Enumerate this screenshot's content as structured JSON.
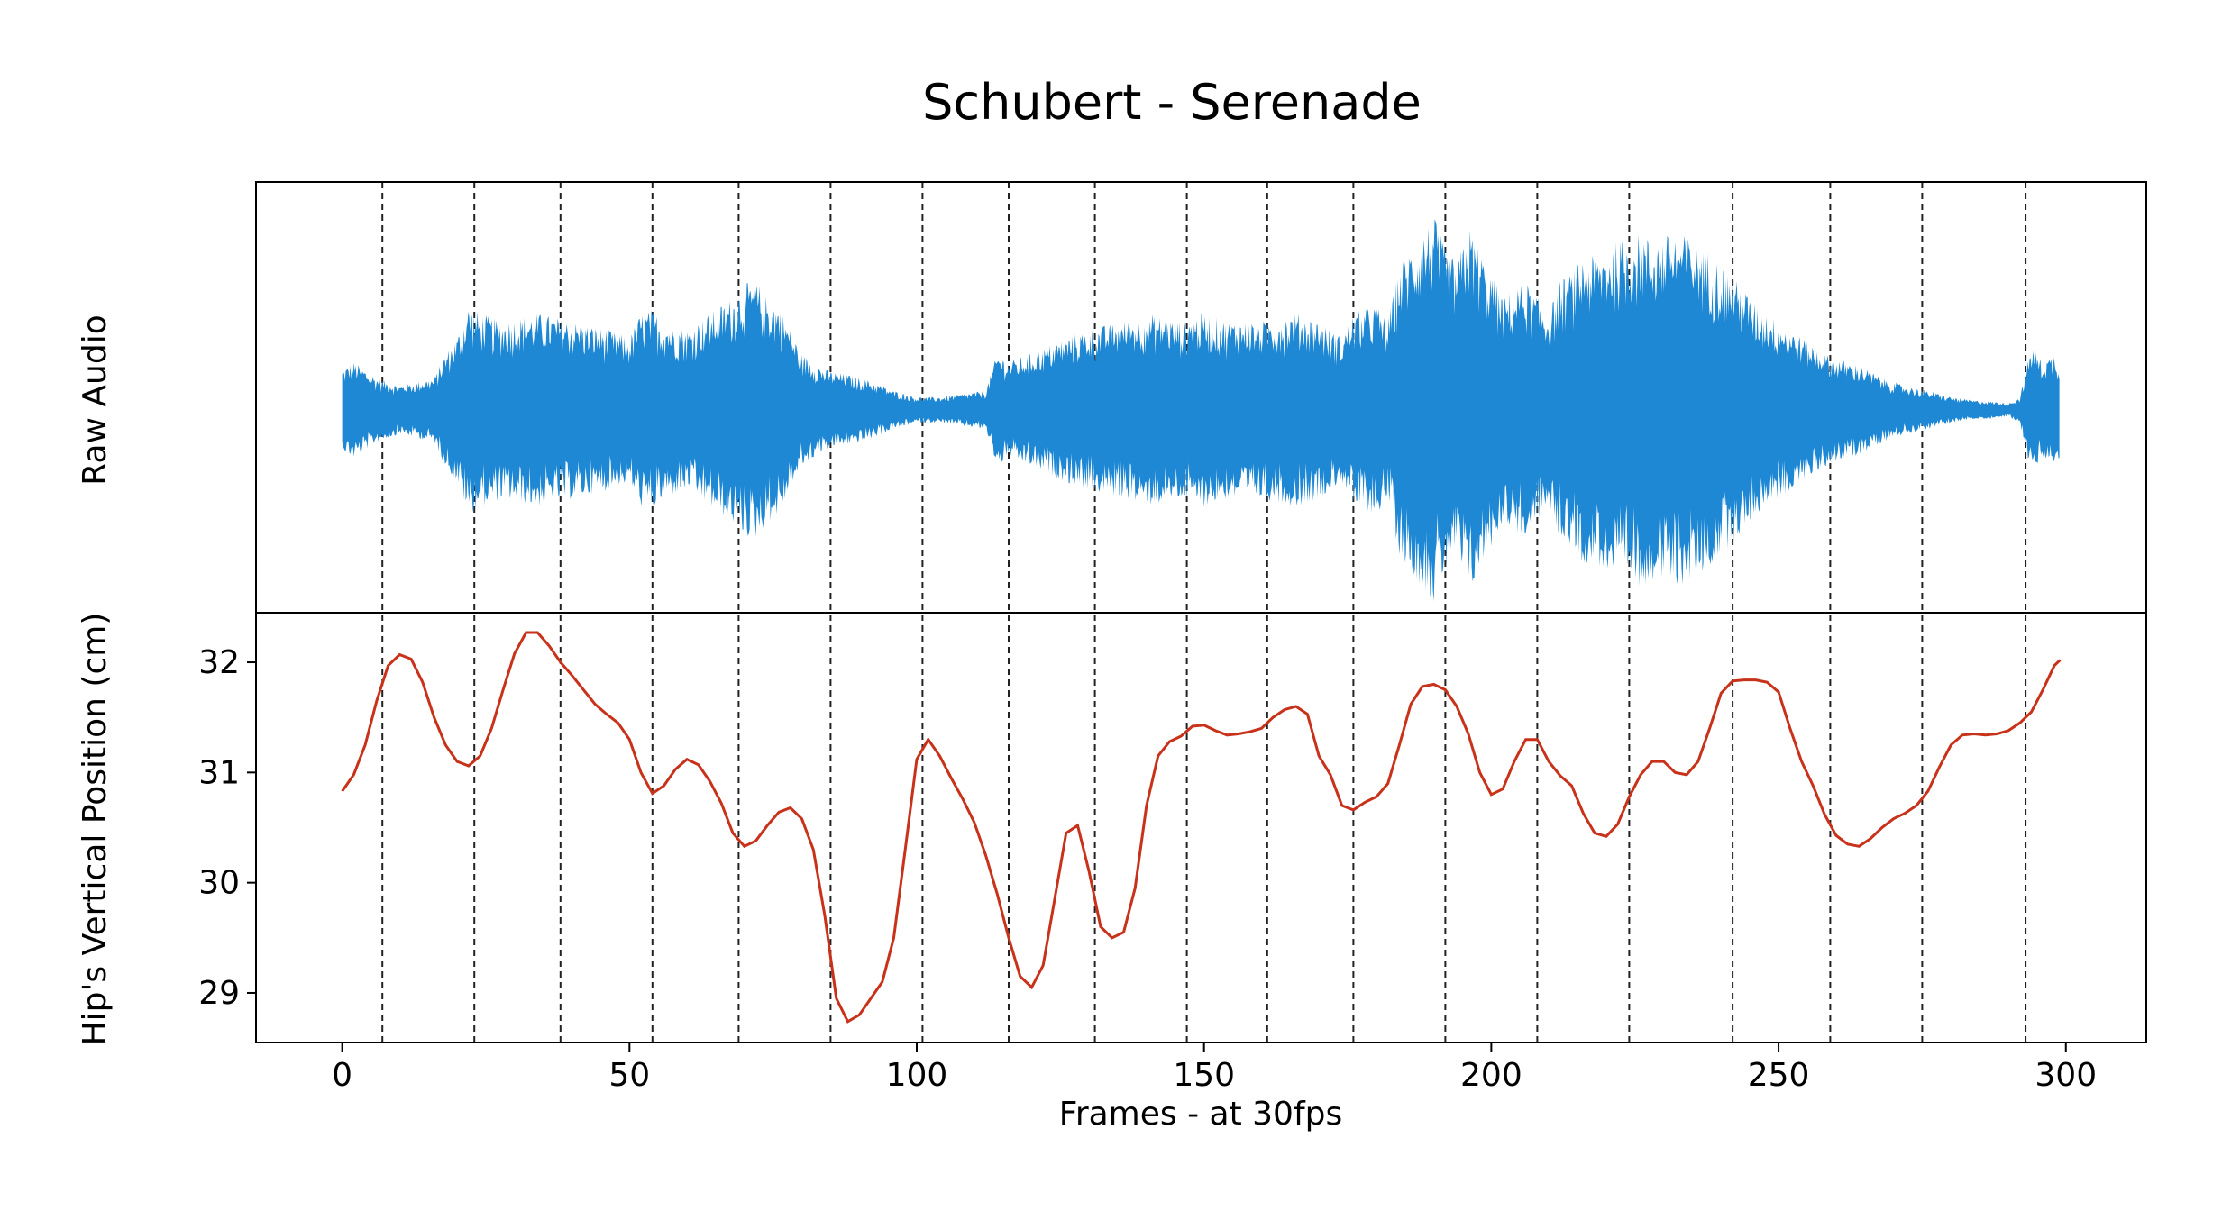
{
  "chart_data": [
    {
      "type": "area",
      "panel": "top",
      "title": "Schubert - Serenade",
      "ylabel": "Raw Audio",
      "y_ticks_shown": false,
      "xlim": [
        -15,
        314
      ],
      "color": "#1f88d4",
      "envelope": {
        "frames": [
          0,
          2,
          4,
          6,
          10,
          16,
          18,
          20,
          22,
          24,
          28,
          34,
          40,
          46,
          50,
          52,
          54,
          56,
          60,
          64,
          68,
          70,
          72,
          74,
          76,
          78,
          80,
          82,
          84,
          88,
          92,
          96,
          100,
          104,
          108,
          112,
          114,
          116,
          120,
          126,
          130,
          136,
          140,
          146,
          150,
          154,
          160,
          166,
          170,
          174,
          176,
          180,
          182,
          184,
          186,
          188,
          190,
          192,
          194,
          196,
          198,
          200,
          202,
          204,
          206,
          208,
          210,
          212,
          214,
          216,
          218,
          220,
          222,
          224,
          226,
          228,
          232,
          236,
          240,
          244,
          246,
          250,
          254,
          258,
          260,
          264,
          268,
          272,
          276,
          280,
          284,
          288,
          290,
          292,
          294,
          296,
          298,
          299
        ],
        "amplitude": [
          0.25,
          0.3,
          0.25,
          0.2,
          0.15,
          0.2,
          0.35,
          0.45,
          0.65,
          0.6,
          0.55,
          0.6,
          0.55,
          0.5,
          0.45,
          0.6,
          0.62,
          0.55,
          0.5,
          0.6,
          0.7,
          0.78,
          0.8,
          0.7,
          0.65,
          0.5,
          0.35,
          0.3,
          0.25,
          0.22,
          0.18,
          0.12,
          0.08,
          0.08,
          0.1,
          0.12,
          0.35,
          0.3,
          0.35,
          0.45,
          0.5,
          0.55,
          0.6,
          0.55,
          0.6,
          0.55,
          0.55,
          0.6,
          0.55,
          0.45,
          0.6,
          0.65,
          0.55,
          0.9,
          1.0,
          1.1,
          1.2,
          1.0,
          0.9,
          1.15,
          1.0,
          0.85,
          0.7,
          0.75,
          0.8,
          0.7,
          0.6,
          0.8,
          0.85,
          0.95,
          0.95,
          1.0,
          1.05,
          1.05,
          1.1,
          1.05,
          1.1,
          1.05,
          0.9,
          0.75,
          0.65,
          0.55,
          0.45,
          0.35,
          0.32,
          0.28,
          0.2,
          0.15,
          0.12,
          0.08,
          0.06,
          0.05,
          0.04,
          0.08,
          0.4,
          0.3,
          0.35,
          0.3
        ]
      }
    },
    {
      "type": "line",
      "panel": "bottom",
      "xlabel": "Frames - at 30fps",
      "ylabel": "Hip's Vertical Position (cm)",
      "xlim": [
        -15,
        314
      ],
      "ylim": [
        28.55,
        32.45
      ],
      "x_ticks": [
        0,
        50,
        100,
        150,
        200,
        250,
        300
      ],
      "y_ticks": [
        29,
        30,
        31,
        32
      ],
      "color": "#c8321a",
      "x": [
        0,
        2,
        4,
        6,
        8,
        10,
        12,
        14,
        16,
        18,
        20,
        22,
        24,
        26,
        28,
        30,
        32,
        34,
        36,
        38,
        40,
        42,
        44,
        46,
        48,
        50,
        52,
        54,
        56,
        58,
        60,
        62,
        64,
        66,
        68,
        70,
        72,
        74,
        76,
        78,
        80,
        82,
        84,
        86,
        88,
        90,
        92,
        94,
        96,
        98,
        100,
        102,
        104,
        106,
        108,
        110,
        112,
        114,
        116,
        118,
        120,
        122,
        124,
        126,
        128,
        130,
        132,
        134,
        136,
        138,
        140,
        142,
        144,
        146,
        148,
        150,
        152,
        154,
        156,
        158,
        160,
        162,
        164,
        166,
        168,
        170,
        172,
        174,
        176,
        178,
        180,
        182,
        184,
        186,
        188,
        190,
        192,
        194,
        196,
        198,
        200,
        202,
        204,
        206,
        208,
        210,
        212,
        214,
        216,
        218,
        220,
        222,
        224,
        226,
        228,
        230,
        232,
        234,
        236,
        238,
        240,
        242,
        244,
        246,
        248,
        250,
        252,
        254,
        256,
        258,
        260,
        262,
        264,
        266,
        268,
        270,
        272,
        274,
        276,
        278,
        280,
        282,
        284,
        286,
        288,
        290,
        292,
        294,
        296,
        298,
        299
      ],
      "y": [
        30.83,
        30.98,
        31.25,
        31.65,
        31.97,
        32.07,
        32.03,
        31.82,
        31.5,
        31.25,
        31.1,
        31.06,
        31.15,
        31.4,
        31.75,
        32.08,
        32.27,
        32.27,
        32.15,
        32.0,
        31.88,
        31.75,
        31.62,
        31.53,
        31.45,
        31.3,
        31.0,
        30.81,
        30.88,
        31.03,
        31.12,
        31.07,
        30.92,
        30.72,
        30.45,
        30.33,
        30.38,
        30.52,
        30.64,
        30.68,
        30.58,
        30.3,
        29.7,
        28.95,
        28.74,
        28.8,
        28.95,
        29.1,
        29.5,
        30.3,
        31.12,
        31.3,
        31.15,
        30.95,
        30.76,
        30.55,
        30.25,
        29.9,
        29.5,
        29.15,
        29.05,
        29.25,
        29.85,
        30.45,
        30.52,
        30.1,
        29.6,
        29.5,
        29.55,
        29.95,
        30.7,
        31.15,
        31.28,
        31.33,
        31.42,
        31.43,
        31.38,
        31.34,
        31.35,
        31.37,
        31.4,
        31.5,
        31.57,
        31.6,
        31.53,
        31.15,
        30.98,
        30.7,
        30.66,
        30.73,
        30.78,
        30.9,
        31.25,
        31.62,
        31.78,
        31.8,
        31.75,
        31.6,
        31.35,
        31.0,
        30.8,
        30.85,
        31.1,
        31.3,
        31.3,
        31.1,
        30.97,
        30.88,
        30.63,
        30.45,
        30.42,
        30.53,
        30.78,
        30.98,
        31.1,
        31.1,
        31.0,
        30.98,
        31.1,
        31.4,
        31.72,
        31.83,
        31.84,
        31.84,
        31.82,
        31.73,
        31.4,
        31.1,
        30.88,
        30.62,
        30.43,
        30.35,
        30.33,
        30.4,
        30.5,
        30.58,
        30.63,
        30.7,
        30.83,
        31.05,
        31.25,
        31.34,
        31.35,
        31.34,
        31.35,
        31.38,
        31.45,
        31.55,
        31.75,
        31.97,
        32.02
      ]
    }
  ],
  "beat_frames": [
    7,
    23,
    38,
    54,
    69,
    85,
    101,
    116,
    131,
    147,
    161,
    176,
    192,
    208,
    224,
    242,
    259,
    275,
    293
  ]
}
